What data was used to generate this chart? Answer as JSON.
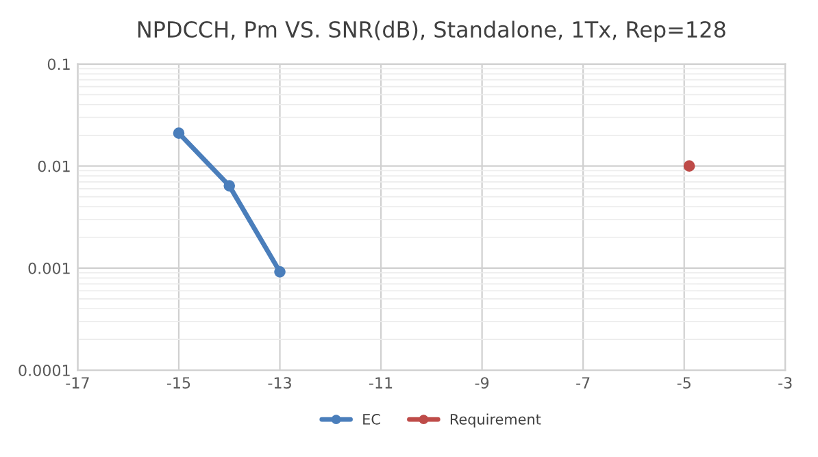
{
  "chart_data": {
    "type": "line",
    "title": "NPDCCH, Pm VS. SNR(dB), Standalone, 1Tx, Rep=128",
    "series": [
      {
        "name": "EC",
        "color": "#4a7ebb",
        "x": [
          -15,
          -14,
          -13
        ],
        "values": [
          0.021,
          0.0064,
          0.00092
        ]
      },
      {
        "name": "Requirement",
        "color": "#be4b48",
        "x": [
          -4.9
        ],
        "values": [
          0.01
        ]
      }
    ],
    "log": "y",
    "xlim": [
      -17,
      -3
    ],
    "xticks": [
      -17,
      -15,
      -13,
      -11,
      -9,
      -7,
      -5,
      -3
    ],
    "ylim": [
      0.0001,
      0.1
    ],
    "yticks": [
      {
        "value": 0.0001,
        "label": "0.0001"
      },
      {
        "value": 0.001,
        "label": "0.001"
      },
      {
        "value": 0.01,
        "label": "0.01"
      },
      {
        "value": 0.1,
        "label": "0.1"
      }
    ],
    "grid": true,
    "legend": "bottom",
    "marker": "circle",
    "line_style": "solid"
  }
}
